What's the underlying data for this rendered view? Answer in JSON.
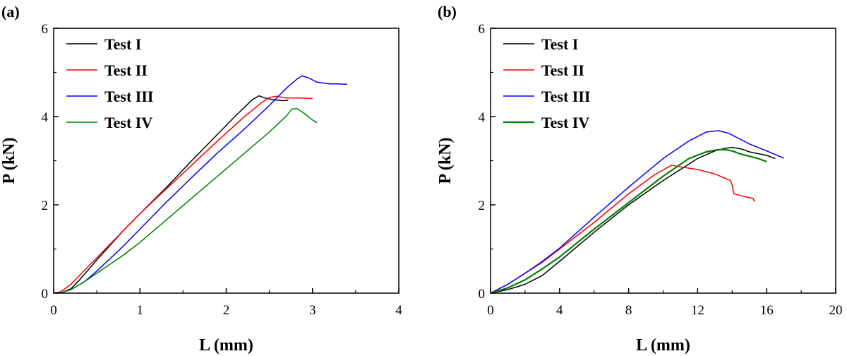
{
  "chart_data": [
    {
      "type": "line",
      "panel_label": "(a)",
      "xlabel": "L (mm)",
      "ylabel": "P (kN)",
      "xlim": [
        0,
        4
      ],
      "ylim": [
        0,
        6
      ],
      "xticks": [
        0,
        1,
        2,
        3,
        4
      ],
      "yticks": [
        0,
        2,
        4,
        6
      ],
      "xtick_labels": [
        "0",
        "1",
        "2",
        "3",
        "4"
      ],
      "ytick_labels": [
        "0",
        "2",
        "4",
        "6"
      ],
      "legend_position": "top-left",
      "series": [
        {
          "name": "Test I",
          "color": "#000000",
          "x": [
            0.0,
            0.1,
            0.2,
            0.3,
            0.5,
            0.8,
            1.0,
            1.3,
            1.6,
            1.9,
            2.1,
            2.3,
            2.38,
            2.45,
            2.55,
            2.65,
            2.72
          ],
          "y": [
            0.0,
            0.02,
            0.1,
            0.3,
            0.75,
            1.4,
            1.8,
            2.38,
            3.0,
            3.6,
            4.0,
            4.38,
            4.47,
            4.42,
            4.38,
            4.36,
            4.37
          ]
        },
        {
          "name": "Test II",
          "color": "#ff0000",
          "x": [
            0.0,
            0.08,
            0.2,
            0.3,
            0.5,
            0.8,
            1.0,
            1.3,
            1.6,
            1.9,
            2.2,
            2.4,
            2.5,
            2.58,
            2.7,
            2.85,
            3.0
          ],
          "y": [
            0.0,
            0.03,
            0.2,
            0.4,
            0.8,
            1.4,
            1.8,
            2.35,
            2.9,
            3.45,
            3.98,
            4.3,
            4.43,
            4.46,
            4.42,
            4.42,
            4.41
          ]
        },
        {
          "name": "Test III",
          "color": "#0000ff",
          "x": [
            0.0,
            0.1,
            0.2,
            0.35,
            0.5,
            0.8,
            1.0,
            1.3,
            1.6,
            1.9,
            2.2,
            2.5,
            2.7,
            2.82,
            2.88,
            2.95,
            3.05,
            3.2,
            3.3,
            3.4
          ],
          "y": [
            0.0,
            0.02,
            0.08,
            0.25,
            0.5,
            1.05,
            1.45,
            2.05,
            2.62,
            3.18,
            3.7,
            4.25,
            4.65,
            4.85,
            4.92,
            4.88,
            4.78,
            4.74,
            4.74,
            4.73
          ]
        },
        {
          "name": "Test IV",
          "color": "#008000",
          "x": [
            0.0,
            0.1,
            0.2,
            0.35,
            0.5,
            0.8,
            1.0,
            1.3,
            1.6,
            1.9,
            2.2,
            2.5,
            2.7,
            2.76,
            2.82,
            2.9,
            2.98,
            3.05
          ],
          "y": [
            0.0,
            0.02,
            0.08,
            0.25,
            0.45,
            0.85,
            1.15,
            1.65,
            2.15,
            2.65,
            3.15,
            3.65,
            4.02,
            4.17,
            4.18,
            4.08,
            3.95,
            3.86
          ]
        }
      ]
    },
    {
      "type": "line",
      "panel_label": "(b)",
      "xlabel": "L (mm)",
      "ylabel": "P (kN)",
      "xlim": [
        0,
        20
      ],
      "ylim": [
        0,
        6
      ],
      "xticks": [
        0,
        4,
        8,
        12,
        16,
        20
      ],
      "yticks": [
        0,
        2,
        4,
        6
      ],
      "xtick_labels": [
        "0",
        "4",
        "8",
        "12",
        "16",
        "20"
      ],
      "ytick_labels": [
        "0",
        "2",
        "4",
        "6"
      ],
      "legend_position": "top-left",
      "series": [
        {
          "name": "Test I",
          "color": "#000000",
          "x": [
            0.0,
            1.0,
            2.0,
            3.0,
            4.0,
            6.0,
            8.0,
            10.0,
            12.0,
            13.0,
            13.6,
            14.0,
            14.5,
            15.0,
            15.5,
            16.0,
            16.5
          ],
          "y": [
            0.0,
            0.08,
            0.2,
            0.4,
            0.72,
            1.38,
            2.0,
            2.55,
            3.05,
            3.22,
            3.28,
            3.3,
            3.27,
            3.2,
            3.16,
            3.12,
            3.05
          ]
        },
        {
          "name": "Test II",
          "color": "#ff0000",
          "x": [
            0.0,
            1.0,
            2.0,
            3.0,
            4.0,
            6.0,
            8.0,
            9.5,
            10.5,
            11.0,
            12.0,
            13.0,
            13.9,
            14.0,
            14.1,
            14.4,
            14.8,
            15.2,
            15.3
          ],
          "y": [
            0.0,
            0.2,
            0.45,
            0.7,
            1.0,
            1.6,
            2.25,
            2.68,
            2.9,
            2.86,
            2.8,
            2.7,
            2.55,
            2.45,
            2.25,
            2.22,
            2.18,
            2.15,
            2.07
          ]
        },
        {
          "name": "Test III",
          "color": "#0000ff",
          "x": [
            0.0,
            1.0,
            2.0,
            3.0,
            4.0,
            6.0,
            8.0,
            10.0,
            11.5,
            12.5,
            13.2,
            13.8,
            14.5,
            15.0,
            16.0,
            16.5,
            17.0
          ],
          "y": [
            0.0,
            0.2,
            0.45,
            0.72,
            1.02,
            1.72,
            2.4,
            3.05,
            3.45,
            3.65,
            3.68,
            3.62,
            3.48,
            3.38,
            3.22,
            3.14,
            3.06
          ]
        },
        {
          "name": "Test IV",
          "color": "#008000",
          "x": [
            0.0,
            1.0,
            2.0,
            3.0,
            4.0,
            6.0,
            8.0,
            10.0,
            11.5,
            12.5,
            13.2,
            13.6,
            14.0,
            14.5,
            15.0,
            15.5,
            16.0
          ],
          "y": [
            0.0,
            0.12,
            0.3,
            0.55,
            0.82,
            1.45,
            2.05,
            2.65,
            3.05,
            3.2,
            3.25,
            3.25,
            3.22,
            3.15,
            3.1,
            3.05,
            2.98
          ]
        }
      ]
    }
  ]
}
